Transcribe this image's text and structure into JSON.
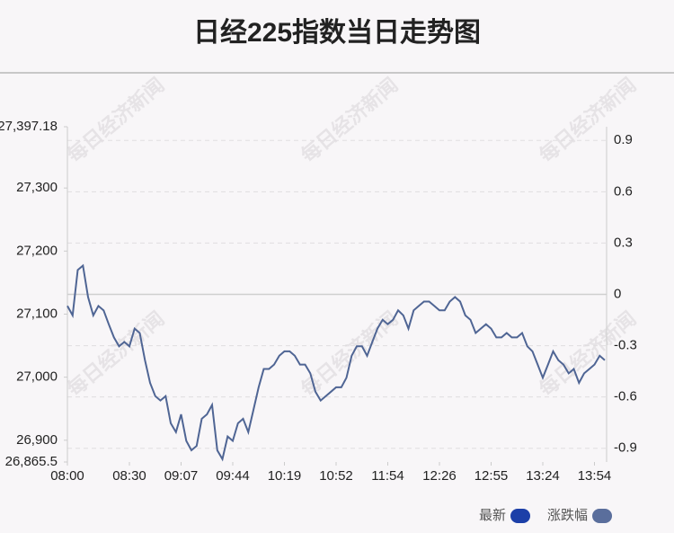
{
  "chart_data": {
    "type": "line",
    "title": "日经225指数当日走势图",
    "watermark": "每日经济新闻",
    "categories": [
      "08:00",
      null,
      null,
      null,
      null,
      null,
      null,
      null,
      null,
      null,
      null,
      null,
      "08:30",
      null,
      null,
      null,
      null,
      null,
      null,
      null,
      null,
      null,
      "09:07",
      null,
      null,
      null,
      null,
      null,
      null,
      null,
      null,
      null,
      "09:44",
      null,
      null,
      null,
      null,
      null,
      null,
      null,
      null,
      null,
      "10:19",
      null,
      null,
      null,
      null,
      null,
      null,
      null,
      null,
      null,
      "10:52",
      null,
      null,
      null,
      null,
      null,
      null,
      null,
      null,
      null,
      "11:54",
      null,
      null,
      null,
      null,
      null,
      null,
      null,
      null,
      null,
      "12:26",
      null,
      null,
      null,
      null,
      null,
      null,
      null,
      null,
      null,
      "12:55",
      null,
      null,
      null,
      null,
      null,
      null,
      null,
      null,
      null,
      "13:24",
      null,
      null,
      null,
      null,
      null,
      null,
      null,
      null,
      null,
      "13:54",
      null,
      null
    ],
    "series": [
      {
        "color": "#4f6594",
        "values": [
          27113,
          27098,
          27170,
          27177,
          27127,
          27098,
          27113,
          27106,
          27084,
          27063,
          27049,
          27056,
          27049,
          27077,
          27070,
          27027,
          26991,
          26970,
          26963,
          26970,
          26927,
          26913,
          26941,
          26899,
          26884,
          26891,
          26934,
          26941,
          26956,
          26884,
          26870,
          26906,
          26899,
          26927,
          26934,
          26913,
          26948,
          26984,
          27013,
          27013,
          27020,
          27034,
          27041,
          27041,
          27034,
          27020,
          27020,
          27006,
          26977,
          26963,
          26970,
          26977,
          26984,
          26984,
          26999,
          27034,
          27049,
          27049,
          27034,
          27056,
          27077,
          27091,
          27084,
          27091,
          27106,
          27098,
          27077,
          27106,
          27113,
          27120,
          27120,
          27113,
          27106,
          27106,
          27120,
          27127,
          27120,
          27098,
          27091,
          27070,
          27077,
          27084,
          27077,
          27063,
          27063,
          27070,
          27063,
          27063,
          27070,
          27049,
          27041,
          27020,
          26999,
          27020,
          27041,
          27027,
          27020,
          27006,
          27013,
          26991,
          27006,
          27013,
          27020,
          27034,
          27027
        ]
      }
    ],
    "legend": [
      {
        "label": "最新",
        "color": "#1c3fa8"
      },
      {
        "label": "涨跌幅",
        "color": "#5a6e9c"
      }
    ],
    "ylim": [
      26865.5,
      27397.18
    ],
    "yticks": [
      {
        "value": 26865.5,
        "label": "26,865.5"
      },
      {
        "value": 26900,
        "label": "26,900"
      },
      {
        "value": 27000,
        "label": "27,000"
      },
      {
        "value": 27100,
        "label": "27,100"
      },
      {
        "value": 27200,
        "label": "27,200"
      },
      {
        "value": 27300,
        "label": "27,300"
      },
      {
        "value": 27397.18,
        "label": "27,397.18"
      }
    ],
    "y2lim": [
      -0.98,
      0.98
    ],
    "y2ticks": [
      -0.9,
      -0.6,
      -0.3,
      0,
      0.3,
      0.6,
      0.9
    ],
    "grid": true
  }
}
